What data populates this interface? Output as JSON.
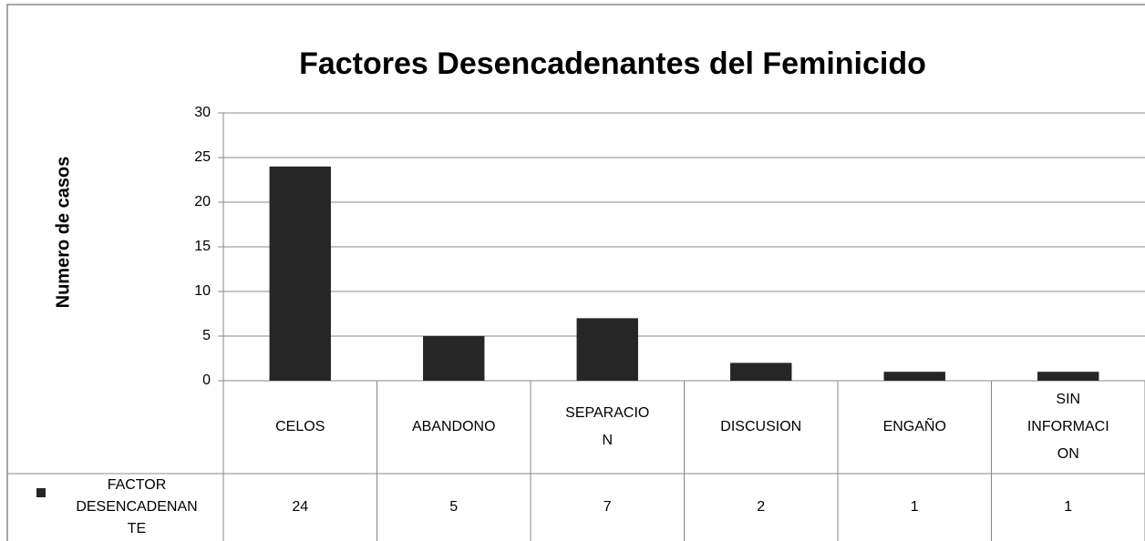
{
  "chart_data": {
    "type": "bar",
    "title": "Factores  Desencadenantes del Feminicido",
    "y_label": "Numero de casos",
    "categories": [
      "CELOS",
      "ABANDONO",
      "SEPARACION",
      "DISCUSION",
      "ENGAÑO",
      "SIN INFORMACION"
    ],
    "series": [
      {
        "name": "FACTOR DESENCADENANTE",
        "color": "#262626",
        "values": [
          24,
          5,
          7,
          2,
          1,
          1
        ]
      }
    ],
    "ylim": [
      0,
      30
    ],
    "yticks": [
      0,
      5,
      10,
      15,
      20,
      25,
      30
    ],
    "grid": true,
    "legend": "data-table"
  }
}
